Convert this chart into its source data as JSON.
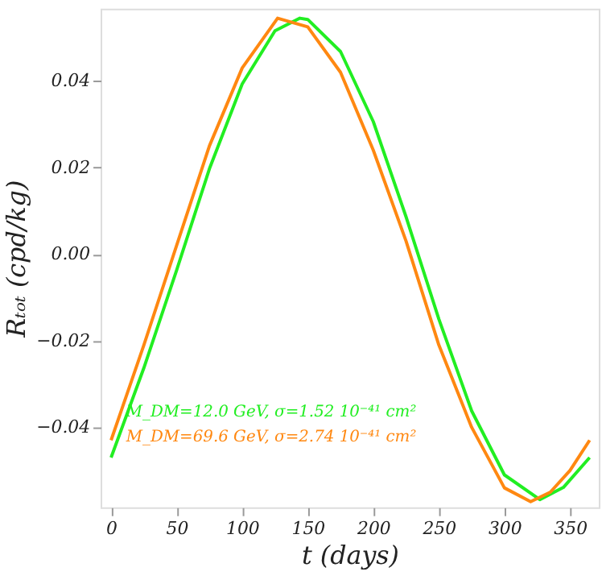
{
  "chart_data": {
    "type": "line",
    "xlabel": "t (days)",
    "ylabel": "Rₜₒₜ (cpd/kg)",
    "xlim": [
      -8,
      372
    ],
    "ylim": [
      -0.0585,
      0.0567
    ],
    "xticks": [
      0,
      50,
      100,
      150,
      200,
      250,
      300,
      350
    ],
    "yticks": [
      {
        "value": -0.04,
        "label": "−0.04"
      },
      {
        "value": -0.02,
        "label": "−0.02"
      },
      {
        "value": 0,
        "label": "0.00"
      },
      {
        "value": 0.02,
        "label": "0.02"
      },
      {
        "value": 0.04,
        "label": "0.04"
      }
    ],
    "grid": false,
    "legend": "bottom left",
    "marker": "none",
    "line_style": "solid",
    "series": [
      {
        "name": "M_DM=12.0 GeV, σ=1.52 10⁻⁴¹ cm²",
        "color": "#22ee22",
        "x": [
          0,
          25,
          50,
          75,
          100,
          125,
          144,
          150,
          175,
          200,
          225,
          250,
          275,
          300,
          327,
          345,
          365
        ],
        "values": [
          -0.047,
          -0.0263,
          -0.0037,
          0.0197,
          0.0393,
          0.0516,
          0.0545,
          0.0542,
          0.0468,
          0.0306,
          0.0086,
          -0.015,
          -0.0362,
          -0.051,
          -0.0567,
          -0.0539,
          -0.047
        ]
      },
      {
        "name": "M_DM=69.6 GeV, σ=2.74 10⁻⁴¹ cm²",
        "color": "#ff8811",
        "x": [
          0,
          25,
          50,
          75,
          100,
          127,
          150,
          175,
          200,
          225,
          250,
          275,
          300,
          320,
          335,
          350,
          365
        ],
        "values": [
          -0.043,
          -0.021,
          0.002,
          0.025,
          0.043,
          0.0545,
          0.0525,
          0.042,
          0.024,
          0.003,
          -0.021,
          -0.04,
          -0.054,
          -0.0572,
          -0.055,
          -0.05,
          -0.043
        ]
      }
    ]
  }
}
